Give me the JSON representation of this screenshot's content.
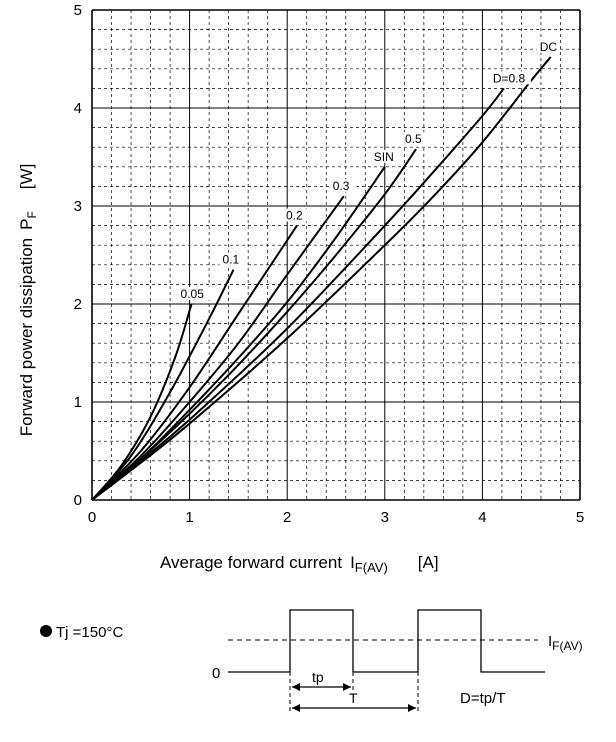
{
  "chart_data": {
    "type": "line",
    "xlabel": "Average forward current",
    "xlabel_symbol": "I",
    "xlabel_sub": "F(AV)",
    "xunit": "[A]",
    "ylabel": "Forward power dissipation",
    "ylabel_symbol": "P",
    "ylabel_sub": "F",
    "yunit": "[W]",
    "xlim": [
      0,
      5
    ],
    "ylim": [
      0,
      5
    ],
    "x_ticks": [
      "0",
      "1",
      "2",
      "3",
      "4",
      "5"
    ],
    "y_ticks": [
      "0",
      "1",
      "2",
      "3",
      "4",
      "5"
    ],
    "grid": "dashed minor grid every 0.2, solid major grid every 1",
    "series": [
      {
        "name": "0.05",
        "points": [
          [
            0,
            0
          ],
          [
            0.3,
            0.35
          ],
          [
            0.6,
            0.85
          ],
          [
            0.85,
            1.45
          ],
          [
            1.02,
            2.0
          ]
        ]
      },
      {
        "name": "0.1",
        "points": [
          [
            0,
            0
          ],
          [
            0.4,
            0.45
          ],
          [
            0.8,
            1.1
          ],
          [
            1.2,
            1.85
          ],
          [
            1.45,
            2.35
          ]
        ]
      },
      {
        "name": "0.2",
        "points": [
          [
            0,
            0
          ],
          [
            0.5,
            0.5
          ],
          [
            1.0,
            1.15
          ],
          [
            1.5,
            1.9
          ],
          [
            2.1,
            2.8
          ]
        ]
      },
      {
        "name": "0.3",
        "points": [
          [
            0,
            0
          ],
          [
            0.5,
            0.45
          ],
          [
            1.0,
            1.0
          ],
          [
            1.5,
            1.6
          ],
          [
            2.0,
            2.3
          ],
          [
            2.58,
            3.1
          ]
        ]
      },
      {
        "name": "SIN",
        "points": [
          [
            0,
            0
          ],
          [
            0.5,
            0.42
          ],
          [
            1.0,
            0.92
          ],
          [
            1.5,
            1.45
          ],
          [
            2.0,
            2.02
          ],
          [
            2.5,
            2.68
          ],
          [
            3.0,
            3.4
          ]
        ]
      },
      {
        "name": "0.5",
        "points": [
          [
            0,
            0
          ],
          [
            0.5,
            0.42
          ],
          [
            1.0,
            0.88
          ],
          [
            1.5,
            1.38
          ],
          [
            2.0,
            1.92
          ],
          [
            2.5,
            2.5
          ],
          [
            3.0,
            3.12
          ],
          [
            3.32,
            3.58
          ]
        ]
      },
      {
        "name": "D=0.8",
        "points": [
          [
            0,
            0
          ],
          [
            0.5,
            0.4
          ],
          [
            1.0,
            0.82
          ],
          [
            2.0,
            1.75
          ],
          [
            3.0,
            2.8
          ],
          [
            3.5,
            3.35
          ],
          [
            4.0,
            3.92
          ],
          [
            4.22,
            4.2
          ]
        ]
      },
      {
        "name": "DC",
        "points": [
          [
            0,
            0
          ],
          [
            0.5,
            0.38
          ],
          [
            1.0,
            0.78
          ],
          [
            2.0,
            1.65
          ],
          [
            3.0,
            2.6
          ],
          [
            3.5,
            3.1
          ],
          [
            4.0,
            3.65
          ],
          [
            4.5,
            4.28
          ],
          [
            4.7,
            4.52
          ]
        ]
      }
    ]
  },
  "waveform": {
    "condition": "Tj =150°C",
    "zero_label": "0",
    "avg_label_symbol": "I",
    "avg_label_sub": "F(AV)",
    "tp_label": "tp",
    "T_label": "T",
    "duty_formula": "D=tp/T"
  }
}
